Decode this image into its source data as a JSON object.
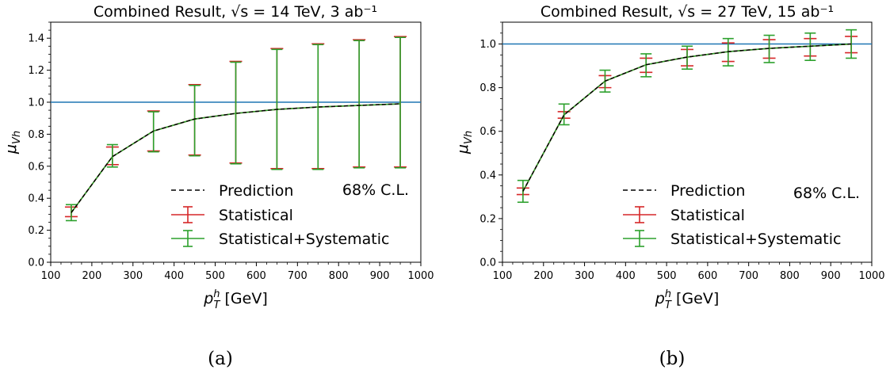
{
  "figure": {
    "panels": [
      {
        "title": "Combined Result, √s = 14 TeV, 3 ab⁻¹",
        "caption": "(a)",
        "ylabel": "μVh",
        "xlabel": "pTh [GeV]",
        "annotation": "68% C.L."
      },
      {
        "title": "Combined Result, √s = 27 TeV, 15 ab⁻¹",
        "caption": "(b)",
        "ylabel": "μVh",
        "xlabel": "pTh [GeV]",
        "annotation": "68% C.L."
      }
    ],
    "legend": [
      "Prediction",
      "Statistical",
      "Statistical+Systematic"
    ],
    "colors": {
      "prediction": "#000000",
      "statistical": "#d62728",
      "stat_syst": "#2ca02c",
      "reference_line": "#1f77b4"
    }
  },
  "chart_data": [
    {
      "type": "line",
      "title": "Combined Result, √s = 14 TeV, 3 ab⁻¹",
      "xlabel": "pTh [GeV]",
      "ylabel": "μVh",
      "xlim": [
        100,
        1000
      ],
      "ylim": [
        0.0,
        1.5
      ],
      "xticks": [
        100,
        200,
        300,
        400,
        500,
        600,
        700,
        800,
        900,
        1000
      ],
      "yticks": [
        0.0,
        0.2,
        0.4,
        0.6,
        0.8,
        1.0,
        1.2,
        1.4
      ],
      "reference_line": 1.0,
      "x": [
        150,
        250,
        350,
        450,
        550,
        650,
        750,
        850,
        950
      ],
      "series": [
        {
          "name": "Prediction",
          "style": "dashed",
          "values": [
            0.31,
            0.66,
            0.82,
            0.895,
            0.93,
            0.955,
            0.97,
            0.98,
            0.99
          ]
        },
        {
          "name": "Statistical",
          "values": [
            0.31,
            0.66,
            0.82,
            0.895,
            0.93,
            0.955,
            0.97,
            0.98,
            0.99
          ],
          "err_low": [
            0.285,
            0.61,
            0.695,
            0.67,
            0.62,
            0.585,
            0.585,
            0.595,
            0.595
          ],
          "err_high": [
            0.345,
            0.72,
            0.945,
            1.11,
            1.255,
            1.335,
            1.365,
            1.39,
            1.41
          ]
        },
        {
          "name": "Statistical+Systematic",
          "values": [
            0.31,
            0.66,
            0.82,
            0.895,
            0.93,
            0.955,
            0.97,
            0.98,
            0.99
          ],
          "err_low": [
            0.26,
            0.595,
            0.69,
            0.665,
            0.615,
            0.58,
            0.58,
            0.59,
            0.59
          ],
          "err_high": [
            0.36,
            0.735,
            0.94,
            1.105,
            1.25,
            1.33,
            1.36,
            1.385,
            1.405
          ]
        }
      ],
      "legend_position": "lower-right",
      "grid": false
    },
    {
      "type": "line",
      "title": "Combined Result, √s = 27 TeV, 15 ab⁻¹",
      "xlabel": "pTh [GeV]",
      "ylabel": "μVh",
      "xlim": [
        100,
        1000
      ],
      "ylim": [
        0.0,
        1.1
      ],
      "xticks": [
        100,
        200,
        300,
        400,
        500,
        600,
        700,
        800,
        900,
        1000
      ],
      "yticks": [
        0.0,
        0.2,
        0.4,
        0.6,
        0.8,
        1.0
      ],
      "reference_line": 1.0,
      "x": [
        150,
        250,
        350,
        450,
        550,
        650,
        750,
        850,
        950
      ],
      "series": [
        {
          "name": "Prediction",
          "style": "dashed",
          "values": [
            0.325,
            0.675,
            0.83,
            0.905,
            0.94,
            0.965,
            0.98,
            0.99,
            1.0
          ]
        },
        {
          "name": "Statistical",
          "values": [
            0.325,
            0.675,
            0.83,
            0.905,
            0.94,
            0.965,
            0.98,
            0.99,
            1.0
          ],
          "err_low": [
            0.31,
            0.66,
            0.8,
            0.87,
            0.9,
            0.92,
            0.935,
            0.945,
            0.96
          ],
          "err_high": [
            0.34,
            0.69,
            0.855,
            0.935,
            0.975,
            1.005,
            1.02,
            1.025,
            1.035
          ]
        },
        {
          "name": "Statistical+Systematic",
          "values": [
            0.325,
            0.675,
            0.83,
            0.905,
            0.94,
            0.965,
            0.98,
            0.99,
            1.0
          ],
          "err_low": [
            0.275,
            0.63,
            0.78,
            0.85,
            0.885,
            0.9,
            0.915,
            0.925,
            0.935
          ],
          "err_high": [
            0.375,
            0.725,
            0.88,
            0.955,
            0.99,
            1.025,
            1.04,
            1.05,
            1.065
          ]
        }
      ],
      "legend_position": "lower-right",
      "grid": false
    }
  ]
}
